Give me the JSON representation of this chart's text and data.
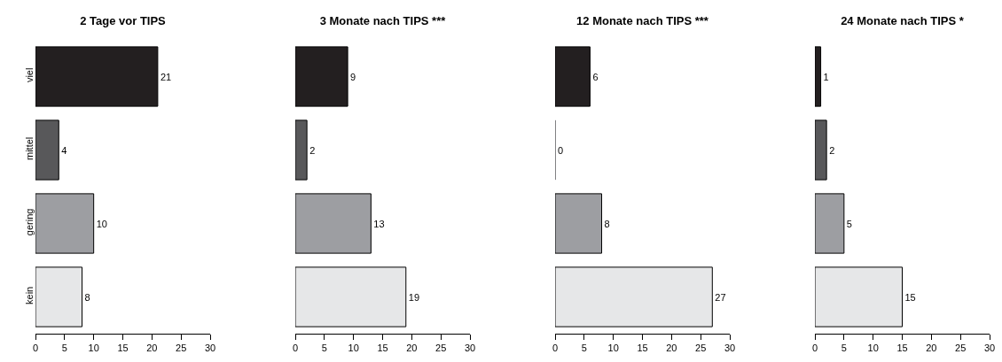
{
  "chart_data": [
    {
      "type": "bar",
      "orientation": "horizontal",
      "title": "2 Tage vor TIPS",
      "categories": [
        "viel",
        "mittel",
        "gering",
        "kein"
      ],
      "values": [
        21,
        4,
        10,
        8
      ],
      "colors": [
        "#231f20",
        "#58585a",
        "#9d9ea2",
        "#e6e7e8"
      ],
      "xlim": [
        0,
        30
      ],
      "xticks": [
        0,
        5,
        10,
        15,
        20,
        25,
        30
      ],
      "data_labels": true,
      "grid": false
    },
    {
      "type": "bar",
      "orientation": "horizontal",
      "title": "3 Monate nach TIPS ***",
      "categories": [
        null,
        null,
        null,
        null
      ],
      "values": [
        9,
        2,
        13,
        19
      ],
      "colors": [
        "#231f20",
        "#58585a",
        "#9d9ea2",
        "#e6e7e8"
      ],
      "xlim": [
        0,
        30
      ],
      "xticks": [
        0,
        5,
        10,
        15,
        20,
        25,
        30
      ],
      "data_labels": true,
      "grid": false,
      "tick_labels": "x"
    },
    {
      "type": "bar",
      "orientation": "horizontal",
      "title": "12 Monate nach TIPS ***",
      "categories": [
        null,
        null,
        null,
        null
      ],
      "values": [
        6,
        0,
        8,
        27
      ],
      "colors": [
        "#231f20",
        "#58585a",
        "#9d9ea2",
        "#e6e7e8"
      ],
      "xlim": [
        0,
        30
      ],
      "xticks": [
        0,
        5,
        10,
        15,
        20,
        25,
        30
      ],
      "data_labels": true,
      "grid": false,
      "tick_labels": "x"
    },
    {
      "type": "bar",
      "orientation": "horizontal",
      "title": "24 Monate nach TIPS *",
      "categories": [
        null,
        null,
        null,
        null
      ],
      "values": [
        1,
        2,
        5,
        15
      ],
      "colors": [
        "#231f20",
        "#58585a",
        "#9d9ea2",
        "#e6e7e8"
      ],
      "xlim": [
        0,
        30
      ],
      "xticks": [
        0,
        5,
        10,
        15,
        20,
        25,
        30
      ],
      "data_labels": true,
      "grid": false,
      "tick_labels": "x"
    }
  ]
}
